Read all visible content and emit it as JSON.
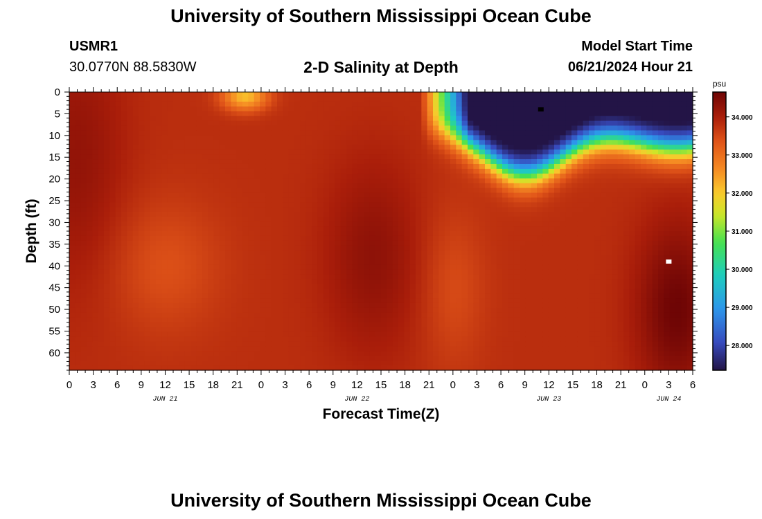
{
  "page": {
    "title_top": "University of Southern Mississippi Ocean Cube",
    "title_bottom": "University of Southern Mississippi Ocean Cube",
    "station_id": "USMR1",
    "coordinates": "30.0770N  88.5830W",
    "subtitle": "2-D Salinity at Depth",
    "model_start_label": "Model Start Time",
    "model_start_time": "06/21/2024 Hour 21"
  },
  "chart_data": {
    "type": "heatmap",
    "title": "2-D Salinity at Depth",
    "xlabel": "Forecast Time(Z)",
    "ylabel": "Depth (ft)",
    "x_hours_range": [
      0,
      78
    ],
    "x_tick_labels": [
      "0",
      "3",
      "6",
      "9",
      "12",
      "15",
      "18",
      "21",
      "0",
      "3",
      "6",
      "9",
      "12",
      "15",
      "18",
      "21",
      "0",
      "3",
      "6",
      "9",
      "12",
      "15",
      "18",
      "21",
      "0",
      "3",
      "6"
    ],
    "date_labels": [
      {
        "label": "JUN 21",
        "hour": 12
      },
      {
        "label": "JUN 22",
        "hour": 36
      },
      {
        "label": "JUN 23",
        "hour": 60
      },
      {
        "label": "JUN 24",
        "hour": 75
      }
    ],
    "y_range": [
      0,
      64
    ],
    "y_ticks": [
      0,
      5,
      10,
      15,
      20,
      25,
      30,
      35,
      40,
      45,
      50,
      55,
      60
    ],
    "y_inverted": true,
    "colorbar": {
      "unit": "psu",
      "range": [
        27.35,
        34.65
      ],
      "ticks": [
        28.0,
        29.0,
        30.0,
        31.0,
        32.0,
        33.0,
        34.0
      ],
      "tick_labels": [
        "28.000",
        "29.000",
        "30.000",
        "31.000",
        "32.000",
        "33.000",
        "34.000"
      ]
    },
    "field": {
      "base": 33.8,
      "features": [
        {
          "kind": "fresh-plume",
          "hour_center": 60,
          "depth_center": 4,
          "min_value": 27.4
        },
        {
          "kind": "fresh-patch",
          "hour_center": 22,
          "depth_center": 1,
          "min_value": 32.0
        },
        {
          "kind": "salty-core",
          "hour_center": 76,
          "depth_center": 50,
          "max_value": 34.6
        },
        {
          "kind": "salty-core",
          "hour_center": 38,
          "depth_center": 38,
          "max_value": 34.3
        },
        {
          "kind": "salty-core",
          "hour_center": 1,
          "depth_center": 15,
          "max_value": 34.3
        }
      ],
      "markers": [
        {
          "kind": "minimum",
          "hour": 59,
          "depth": 4,
          "color": "#000000"
        },
        {
          "kind": "maximum",
          "hour": 75,
          "depth": 39,
          "color": "#ffffff"
        }
      ]
    }
  }
}
